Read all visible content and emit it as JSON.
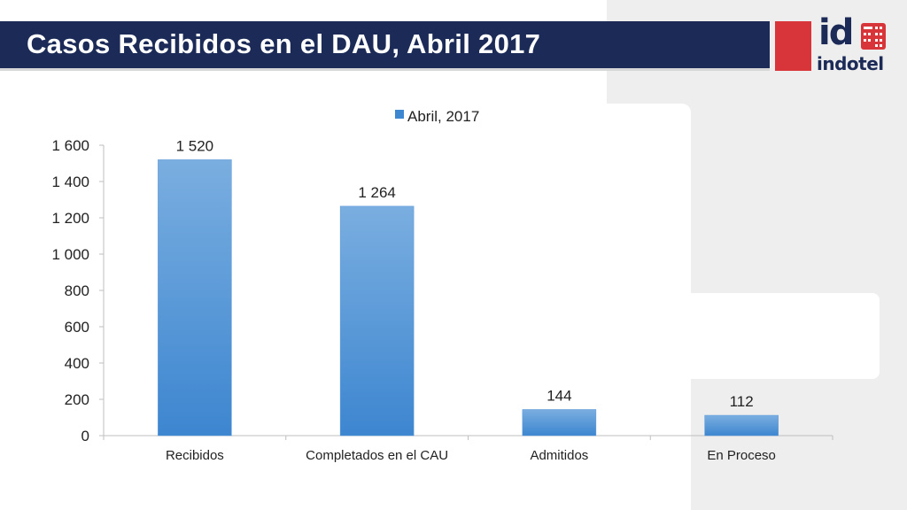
{
  "slide": {
    "title": "Casos Recibidos en el DAU, Abril 2017",
    "logo": {
      "mark": "id",
      "name": "indotel"
    }
  },
  "colors": {
    "title_bar": "#1b2a56",
    "logo_red": "#d8353b",
    "bar_top": "#7aaee0",
    "bar_bottom": "#3d86d0"
  },
  "chart_data": {
    "type": "bar",
    "categories": [
      "Recibidos",
      "Completados en el CAU",
      "Admitidos",
      "En Proceso"
    ],
    "series": [
      {
        "name": "Abril, 2017",
        "values": [
          1520,
          1264,
          144,
          112
        ]
      }
    ],
    "data_labels": [
      "1 520",
      "1 264",
      "144",
      "112"
    ],
    "ylim": [
      0,
      1600
    ],
    "yticks": [
      0,
      200,
      400,
      600,
      800,
      1000,
      1200,
      1400,
      1600
    ],
    "ytick_labels": [
      "0",
      "200",
      "400",
      "600",
      "800",
      "1 000",
      "1 200",
      "1 400",
      "1 600"
    ],
    "grid": false,
    "legend_position": "top-center",
    "title": "",
    "xlabel": "",
    "ylabel": ""
  }
}
